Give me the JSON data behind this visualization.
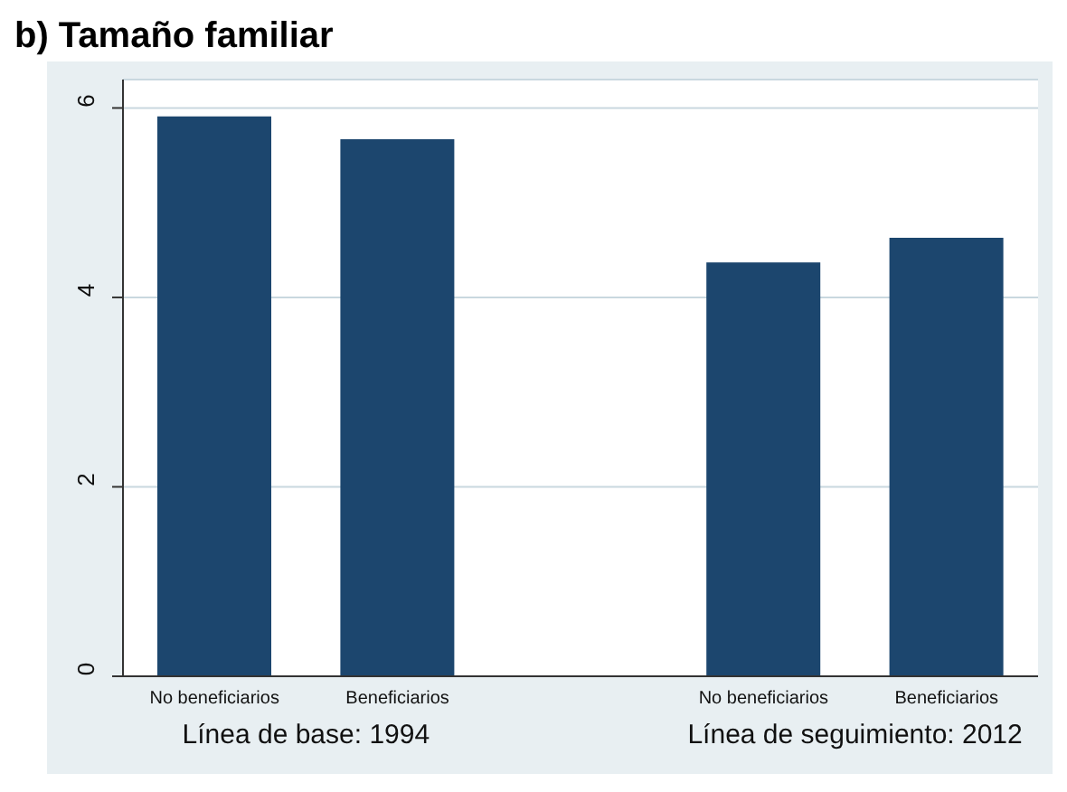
{
  "chart_data": {
    "type": "bar",
    "title": "b) Tamaño familiar",
    "categories": [
      "No beneficiarios",
      "Beneficiarios",
      "No beneficiarios",
      "Beneficiarios"
    ],
    "values": [
      5.91,
      5.67,
      4.37,
      4.63
    ],
    "color": "#1c466e",
    "ylim": [
      0,
      6.3
    ],
    "yticks": [
      0,
      2,
      4,
      6
    ],
    "grid": "y",
    "annotations": [
      "Línea de base: 1994",
      "Línea de seguimiento: 2012"
    ]
  }
}
